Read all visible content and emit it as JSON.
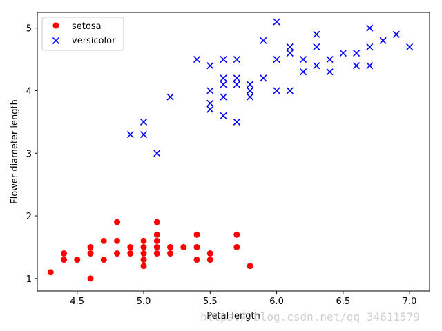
{
  "chart_data": {
    "type": "scatter",
    "title": "",
    "xlabel": "Petal length",
    "ylabel": "Flower diameter length",
    "xlim": [
      4.2,
      7.15
    ],
    "ylim": [
      0.8,
      5.25
    ],
    "xticks": [
      "4.5",
      "5.0",
      "5.5",
      "6.0",
      "6.5",
      "7.0"
    ],
    "yticks": [
      "1",
      "2",
      "3",
      "4",
      "5"
    ],
    "legend_position": "top-left",
    "grid": false,
    "series": [
      {
        "name": "setosa",
        "marker": "circle",
        "color": "#ff0000",
        "points": [
          [
            4.3,
            1.1
          ],
          [
            4.4,
            1.3
          ],
          [
            4.4,
            1.4
          ],
          [
            4.5,
            1.3
          ],
          [
            4.6,
            1.0
          ],
          [
            4.6,
            1.4
          ],
          [
            4.6,
            1.5
          ],
          [
            4.7,
            1.3
          ],
          [
            4.7,
            1.6
          ],
          [
            4.8,
            1.4
          ],
          [
            4.8,
            1.6
          ],
          [
            4.8,
            1.9
          ],
          [
            4.9,
            1.4
          ],
          [
            4.9,
            1.5
          ],
          [
            5.0,
            1.2
          ],
          [
            5.0,
            1.3
          ],
          [
            5.0,
            1.4
          ],
          [
            5.0,
            1.5
          ],
          [
            5.0,
            1.6
          ],
          [
            5.1,
            1.4
          ],
          [
            5.1,
            1.5
          ],
          [
            5.1,
            1.6
          ],
          [
            5.1,
            1.7
          ],
          [
            5.1,
            1.9
          ],
          [
            5.2,
            1.4
          ],
          [
            5.2,
            1.5
          ],
          [
            5.3,
            1.5
          ],
          [
            5.4,
            1.3
          ],
          [
            5.4,
            1.5
          ],
          [
            5.4,
            1.7
          ],
          [
            5.5,
            1.3
          ],
          [
            5.5,
            1.4
          ],
          [
            5.7,
            1.5
          ],
          [
            5.7,
            1.7
          ],
          [
            5.8,
            1.2
          ]
        ]
      },
      {
        "name": "versicolor",
        "marker": "x",
        "color": "#0000ff",
        "points": [
          [
            4.9,
            3.3
          ],
          [
            5.0,
            3.3
          ],
          [
            5.0,
            3.5
          ],
          [
            5.1,
            3.0
          ],
          [
            5.2,
            3.9
          ],
          [
            5.4,
            4.5
          ],
          [
            5.5,
            3.7
          ],
          [
            5.5,
            3.8
          ],
          [
            5.5,
            4.0
          ],
          [
            5.5,
            4.4
          ],
          [
            5.6,
            3.6
          ],
          [
            5.6,
            3.9
          ],
          [
            5.6,
            4.1
          ],
          [
            5.6,
            4.2
          ],
          [
            5.6,
            4.5
          ],
          [
            5.7,
            3.5
          ],
          [
            5.7,
            4.1
          ],
          [
            5.7,
            4.2
          ],
          [
            5.7,
            4.5
          ],
          [
            5.8,
            3.9
          ],
          [
            5.8,
            4.0
          ],
          [
            5.8,
            4.1
          ],
          [
            5.9,
            4.2
          ],
          [
            5.9,
            4.8
          ],
          [
            6.0,
            4.0
          ],
          [
            6.0,
            4.5
          ],
          [
            6.0,
            5.1
          ],
          [
            6.1,
            4.0
          ],
          [
            6.1,
            4.6
          ],
          [
            6.1,
            4.7
          ],
          [
            6.2,
            4.3
          ],
          [
            6.2,
            4.5
          ],
          [
            6.3,
            4.4
          ],
          [
            6.3,
            4.7
          ],
          [
            6.3,
            4.9
          ],
          [
            6.4,
            4.3
          ],
          [
            6.4,
            4.5
          ],
          [
            6.5,
            4.6
          ],
          [
            6.6,
            4.4
          ],
          [
            6.6,
            4.6
          ],
          [
            6.7,
            4.4
          ],
          [
            6.7,
            4.7
          ],
          [
            6.7,
            5.0
          ],
          [
            6.8,
            4.8
          ],
          [
            6.9,
            4.9
          ],
          [
            7.0,
            4.7
          ]
        ]
      }
    ]
  },
  "watermark": "https://blog.csdn.net/qq_34611579"
}
